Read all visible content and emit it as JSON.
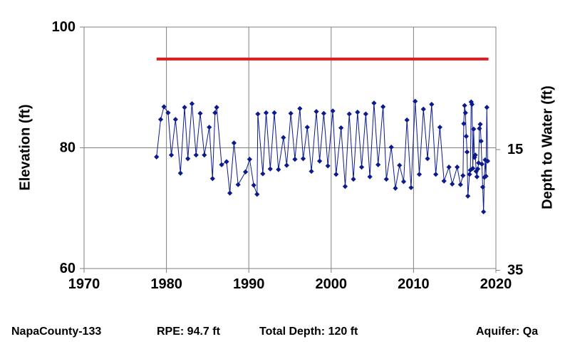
{
  "chart_data": {
    "type": "scatter",
    "title": "",
    "xlabel": "",
    "ylabel": "Elevation (ft)",
    "y2label": "Depth to Water (ft)",
    "xlim": [
      1970,
      2020
    ],
    "ylim": [
      60,
      100
    ],
    "x_ticks": [
      "1970",
      "1980",
      "1990",
      "2000",
      "2010",
      "2020"
    ],
    "y_ticks": [
      "60",
      "80",
      "100"
    ],
    "y2_ticks": [
      "15",
      "35"
    ],
    "y2_tick_values": [
      79.7,
      59.7
    ],
    "grid": true,
    "colors": {
      "series": "#0b1a8c",
      "rpe_line": "#e41a1c"
    },
    "reference_line": {
      "value": 94.7,
      "x_start": 1978.8,
      "x_end": 2019.1
    },
    "series": [
      {
        "marker": "diamond",
        "points": [
          [
            1978.8,
            78.5
          ],
          [
            1979.3,
            84.7
          ],
          [
            1979.7,
            86.8
          ],
          [
            1980.2,
            85.8
          ],
          [
            1980.6,
            78.8
          ],
          [
            1981.1,
            84.7
          ],
          [
            1981.7,
            75.8
          ],
          [
            1982.2,
            86.7
          ],
          [
            1982.6,
            78.2
          ],
          [
            1983.1,
            87.3
          ],
          [
            1983.6,
            78.8
          ],
          [
            1984.1,
            85.7
          ],
          [
            1984.6,
            78.8
          ],
          [
            1985.2,
            83.4
          ],
          [
            1985.6,
            74.9
          ],
          [
            1985.9,
            85.8
          ],
          [
            1986.1,
            86.7
          ],
          [
            1986.7,
            77.2
          ],
          [
            1987.3,
            77.7
          ],
          [
            1987.7,
            72.5
          ],
          [
            1988.2,
            80.8
          ],
          [
            1988.7,
            73.9
          ],
          [
            1989.6,
            76.0
          ],
          [
            1990.1,
            78.1
          ],
          [
            1990.6,
            73.8
          ],
          [
            1991.0,
            72.3
          ],
          [
            1991.1,
            85.6
          ],
          [
            1991.7,
            75.7
          ],
          [
            1992.1,
            85.8
          ],
          [
            1992.6,
            76.5
          ],
          [
            1993.1,
            85.8
          ],
          [
            1993.6,
            76.4
          ],
          [
            1994.2,
            81.7
          ],
          [
            1994.6,
            77.1
          ],
          [
            1995.1,
            85.7
          ],
          [
            1995.6,
            78.1
          ],
          [
            1996.2,
            86.5
          ],
          [
            1996.6,
            78.2
          ],
          [
            1997.1,
            83.4
          ],
          [
            1997.6,
            76.1
          ],
          [
            1998.2,
            86.0
          ],
          [
            1998.6,
            77.8
          ],
          [
            1999.1,
            85.7
          ],
          [
            1999.6,
            77.0
          ],
          [
            2000.2,
            86.1
          ],
          [
            2000.6,
            75.6
          ],
          [
            2001.2,
            83.3
          ],
          [
            2001.7,
            73.6
          ],
          [
            2002.2,
            85.6
          ],
          [
            2002.7,
            74.8
          ],
          [
            2003.2,
            85.9
          ],
          [
            2003.7,
            76.8
          ],
          [
            2004.2,
            85.6
          ],
          [
            2004.7,
            75.2
          ],
          [
            2005.2,
            87.4
          ],
          [
            2005.7,
            77.2
          ],
          [
            2006.3,
            86.8
          ],
          [
            2006.7,
            74.8
          ],
          [
            2007.3,
            80.1
          ],
          [
            2007.8,
            73.3
          ],
          [
            2008.3,
            77.1
          ],
          [
            2008.8,
            74.4
          ],
          [
            2009.2,
            84.6
          ],
          [
            2009.7,
            73.4
          ],
          [
            2010.2,
            87.7
          ],
          [
            2010.7,
            75.6
          ],
          [
            2011.2,
            86.4
          ],
          [
            2011.7,
            78.2
          ],
          [
            2012.2,
            87.2
          ],
          [
            2012.7,
            75.6
          ],
          [
            2013.2,
            83.4
          ],
          [
            2013.7,
            74.5
          ],
          [
            2014.3,
            76.8
          ],
          [
            2014.7,
            74.0
          ],
          [
            2015.3,
            76.8
          ],
          [
            2015.7,
            73.9
          ],
          [
            2016.0,
            75.4
          ],
          [
            2016.1,
            84.0
          ],
          [
            2016.2,
            87.0
          ],
          [
            2016.3,
            85.8
          ],
          [
            2016.4,
            81.9
          ],
          [
            2016.5,
            79.3
          ],
          [
            2016.6,
            72.0
          ],
          [
            2016.8,
            75.6
          ],
          [
            2016.9,
            76.3
          ],
          [
            2017.0,
            87.6
          ],
          [
            2017.1,
            87.2
          ],
          [
            2017.2,
            76.6
          ],
          [
            2017.3,
            83.1
          ],
          [
            2017.4,
            78.4
          ],
          [
            2017.5,
            78.8
          ],
          [
            2017.6,
            76.1
          ],
          [
            2017.7,
            75.2
          ],
          [
            2017.8,
            76.5
          ],
          [
            2017.9,
            77.5
          ],
          [
            2018.0,
            83.2
          ],
          [
            2018.1,
            83.9
          ],
          [
            2018.2,
            81.1
          ],
          [
            2018.3,
            77.3
          ],
          [
            2018.4,
            73.5
          ],
          [
            2018.5,
            69.4
          ],
          [
            2018.6,
            75.1
          ],
          [
            2018.7,
            78.0
          ],
          [
            2018.8,
            75.3
          ],
          [
            2018.9,
            86.7
          ],
          [
            2019.0,
            77.8
          ]
        ]
      }
    ]
  },
  "footer": {
    "well": "NapaCounty-133",
    "rpe": "RPE: 94.7 ft",
    "depth": "Total Depth: 120 ft",
    "aquifer": "Aquifer: Qa"
  }
}
